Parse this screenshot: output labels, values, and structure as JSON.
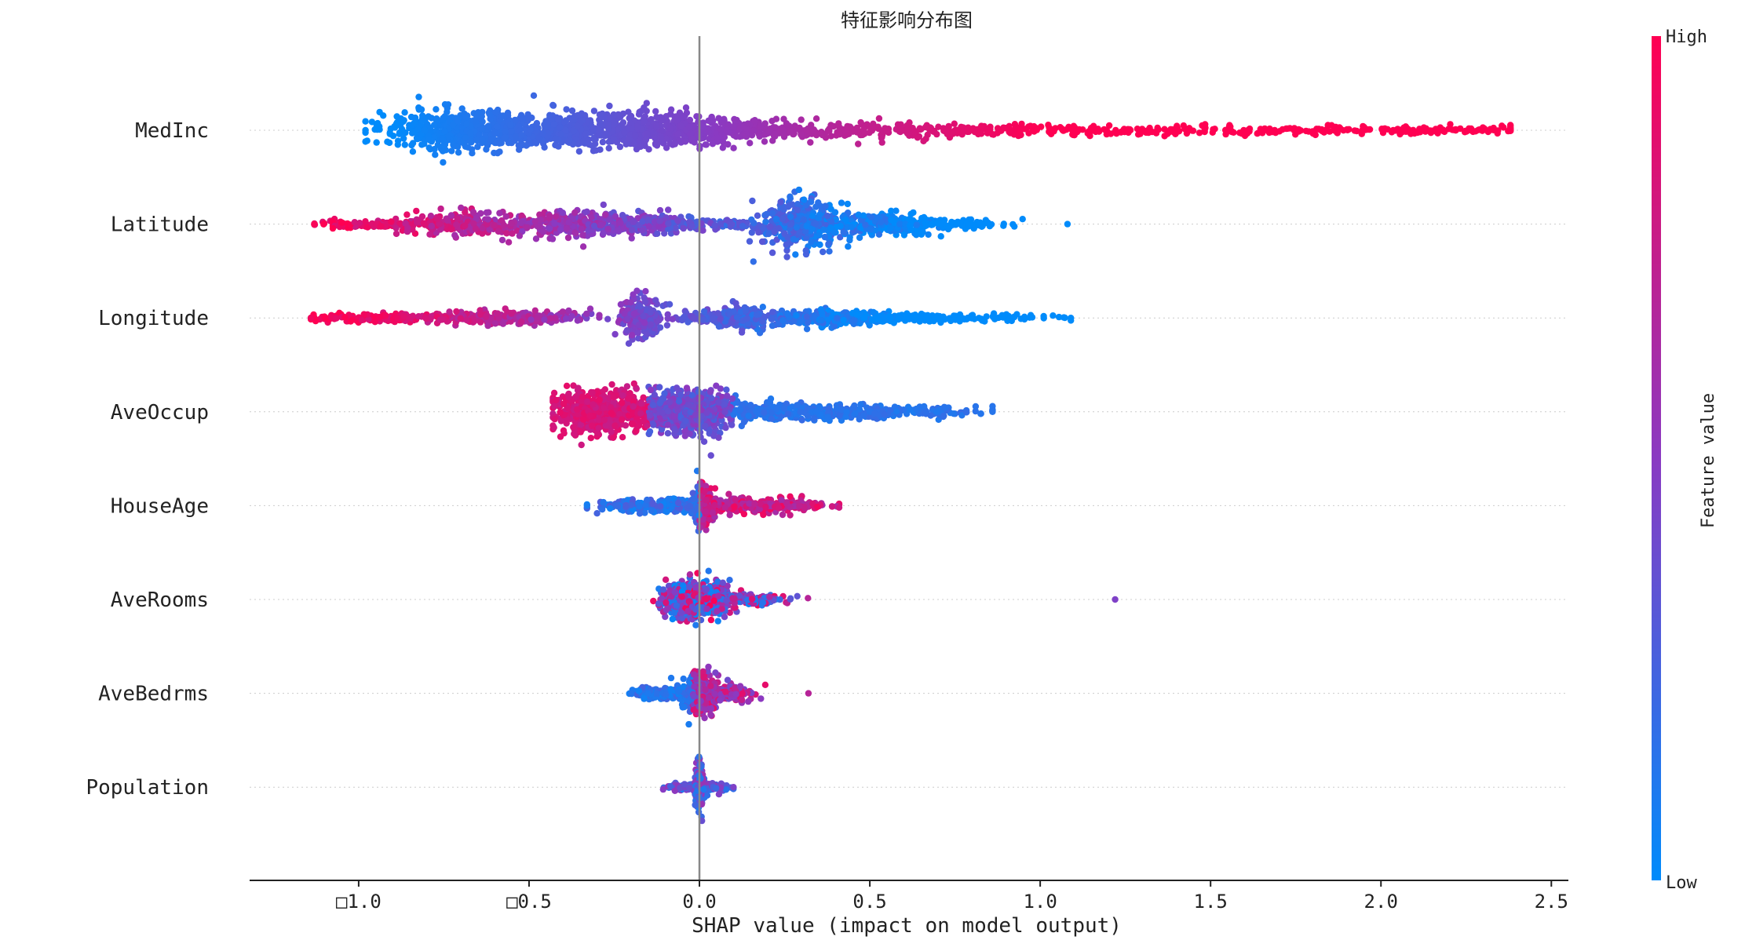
{
  "chart_data": {
    "type": "scatter",
    "subtype": "shap-beeswarm",
    "title": "特征影响分布图",
    "xlabel": "SHAP value (impact on model output)",
    "ylabel": "",
    "xlim": [
      -1.32,
      2.55
    ],
    "x_ticks": [
      -1.0,
      -0.5,
      0.0,
      0.5,
      1.0,
      1.5,
      2.0,
      2.5
    ],
    "x_tick_labels": [
      "□1.0",
      "□0.5",
      "0.0",
      "0.5",
      "1.0",
      "1.5",
      "2.0",
      "2.5"
    ],
    "features": [
      "MedInc",
      "Latitude",
      "Longitude",
      "AveOccup",
      "HouseAge",
      "AveRooms",
      "AveBedrms",
      "Population"
    ],
    "grid": false,
    "zero_line": true,
    "colorbar": {
      "label": "Feature value",
      "high_label": "High",
      "low_label": "Low",
      "high_color": "#ff0052",
      "mid_color": "#8a3ac2",
      "low_color": "#008bfb"
    },
    "series": [
      {
        "feature": "MedInc",
        "x_min": -0.98,
        "x_max": 2.38,
        "density_peaks": [
          -0.7,
          -0.35,
          -0.05
        ],
        "outliers": [
          -0.98,
          2.38
        ]
      },
      {
        "feature": "Latitude",
        "x_min": -1.13,
        "x_max": 1.08,
        "density_peaks": [
          -0.68,
          -0.38,
          -0.17,
          0.3,
          0.52
        ],
        "outliers": [
          -1.13,
          1.08
        ]
      },
      {
        "feature": "Longitude",
        "x_min": -1.14,
        "x_max": 1.09,
        "density_peaks": [
          -0.68,
          -0.17,
          0.13,
          0.35
        ],
        "outliers": [
          -1.14,
          1.09
        ]
      },
      {
        "feature": "AveOccup",
        "x_min": -0.43,
        "x_max": 0.86,
        "density_peaks": [
          -0.3,
          -0.05,
          0.4
        ],
        "outliers": [
          0.86
        ]
      },
      {
        "feature": "HouseAge",
        "x_min": -0.33,
        "x_max": 0.41,
        "density_peaks": [
          -0.05,
          0.02,
          0.1
        ],
        "outliers": [
          -0.33
        ]
      },
      {
        "feature": "AveRooms",
        "x_min": -0.14,
        "x_max": 1.22,
        "density_peaks": [
          -0.04,
          0.02,
          0.1
        ],
        "outliers": [
          1.22
        ]
      },
      {
        "feature": "AveBedrms",
        "x_min": -0.23,
        "x_max": 0.32,
        "density_peaks": [
          -0.03,
          0.02
        ],
        "outliers": [
          0.32
        ]
      },
      {
        "feature": "Population",
        "x_min": -0.12,
        "x_max": 0.1,
        "density_peaks": [
          0.0
        ],
        "outliers": [
          0.1
        ]
      }
    ]
  }
}
